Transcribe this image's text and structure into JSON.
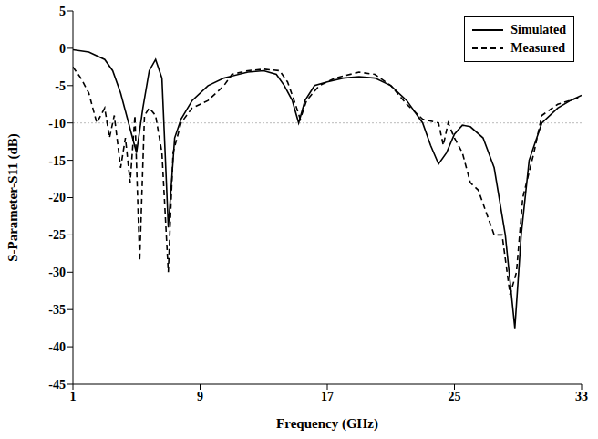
{
  "chart_data": {
    "type": "line",
    "x_label": "Frequency (GHz)",
    "y_label": "S-Parameter-S11 (dB)",
    "xlim": [
      1,
      33
    ],
    "xticks": [
      1,
      9,
      17,
      25,
      33
    ],
    "ylim": [
      -45,
      5
    ],
    "yticks": [
      -45,
      -40,
      -35,
      -30,
      -25,
      -20,
      -15,
      -10,
      -5,
      0,
      5
    ],
    "threshold": -10,
    "legend": "upper right",
    "grid": false,
    "series": [
      {
        "name": "Simulated",
        "color": "#000000",
        "line_style": "solid",
        "x": [
          1,
          2,
          3,
          3.5,
          4,
          4.5,
          5,
          5.4,
          5.8,
          6.2,
          6.6,
          7,
          7.4,
          7.8,
          8.5,
          9.5,
          10.5,
          12,
          13,
          13.8,
          14.3,
          14.8,
          15.2,
          15.6,
          16.2,
          17,
          18,
          19,
          20,
          21,
          22,
          23,
          23.5,
          24,
          24.5,
          25,
          25.5,
          26,
          26.8,
          27.5,
          28.2,
          28.8,
          29.2,
          29.7,
          30.5,
          31.5,
          32.3,
          33
        ],
        "values": [
          -0.2,
          -0.5,
          -1.5,
          -3,
          -6,
          -10,
          -14,
          -8,
          -3,
          -1.5,
          -4,
          -24,
          -12,
          -9.5,
          -7,
          -5,
          -4,
          -3.2,
          -3,
          -3.5,
          -5,
          -7,
          -10,
          -7,
          -5,
          -4.5,
          -4,
          -3.8,
          -4,
          -5,
          -7,
          -10,
          -13,
          -15.5,
          -14,
          -11.5,
          -10.3,
          -10.5,
          -12,
          -16,
          -25,
          -37.5,
          -25,
          -15,
          -10,
          -8,
          -7,
          -6.3
        ]
      },
      {
        "name": "Measured",
        "color": "#000000",
        "line_style": "dashed",
        "x": [
          1,
          1.5,
          2,
          2.5,
          3,
          3.3,
          3.6,
          4,
          4.3,
          4.6,
          4.9,
          5.2,
          5.5,
          5.8,
          6.2,
          6.6,
          7,
          7.3,
          7.8,
          8.5,
          9.5,
          10,
          10.5,
          11,
          12,
          13,
          14,
          14.5,
          15,
          15.3,
          15.7,
          16.5,
          17.5,
          19,
          20,
          21,
          22,
          23,
          24,
          24.3,
          24.6,
          25,
          25.5,
          26,
          26.5,
          27,
          27.5,
          28,
          28.5,
          28.9,
          29.3,
          30,
          30.5,
          31.5,
          33
        ],
        "values": [
          -2.5,
          -4,
          -6,
          -10,
          -8,
          -12,
          -9,
          -16,
          -12,
          -18,
          -9,
          -28.5,
          -9,
          -8,
          -9,
          -14,
          -30,
          -14,
          -10,
          -8,
          -7,
          -6,
          -5,
          -3.5,
          -3,
          -2.8,
          -3,
          -4.5,
          -7.5,
          -9.5,
          -7,
          -5,
          -4,
          -3.2,
          -3.5,
          -5,
          -7.5,
          -9.5,
          -10,
          -13,
          -10,
          -12,
          -14,
          -18,
          -19,
          -22,
          -25,
          -25,
          -33,
          -30,
          -20,
          -14,
          -9,
          -7.5,
          -6.5
        ]
      }
    ]
  }
}
